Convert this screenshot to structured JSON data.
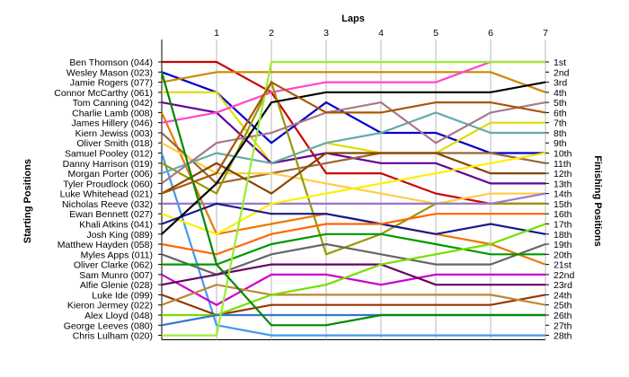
{
  "chart_data": {
    "type": "line",
    "title": "",
    "x_axis_title": "Laps",
    "left_axis_title": "Starting Positions",
    "right_axis_title": "Finishing Positions",
    "laps": [
      1,
      2,
      3,
      4,
      5,
      6,
      7
    ],
    "xlim": [
      0,
      7
    ],
    "ylim": [
      1,
      28
    ],
    "y_reversed": true,
    "grid": "vertical",
    "finishing_labels": [
      "1st",
      "2nd",
      "3rd",
      "4th",
      "5th",
      "6th",
      "7th",
      "8th",
      "9th",
      "10th",
      "11th",
      "12th",
      "13th",
      "14th",
      "15th",
      "16th",
      "17th",
      "18th",
      "19th",
      "20th",
      "21st",
      "22nd",
      "23rd",
      "24th",
      "25th",
      "26th",
      "27th",
      "28th"
    ],
    "series": [
      {
        "name": "Ben Thomson (044)",
        "color": "#cc0000",
        "positions": [
          1,
          1,
          4,
          12,
          12,
          14,
          15,
          15
        ]
      },
      {
        "name": "Wesley Mason (023)",
        "color": "#0000cc",
        "positions": [
          2,
          4,
          9,
          5,
          8,
          8,
          10,
          10
        ]
      },
      {
        "name": "Jamie Rogers (077)",
        "color": "#cc8800",
        "positions": [
          3,
          2,
          2,
          2,
          2,
          2,
          2,
          4
        ]
      },
      {
        "name": "Connor McCarthy (061)",
        "color": "#dddd00",
        "positions": [
          4,
          4,
          11,
          9,
          10,
          10,
          7,
          7
        ]
      },
      {
        "name": "Tom Canning (042)",
        "color": "#660099",
        "positions": [
          5,
          6,
          11,
          10,
          11,
          11,
          13,
          13
        ]
      },
      {
        "name": "Charlie Lamb (008)",
        "color": "#ee7700",
        "positions": [
          6,
          18,
          17,
          16,
          17,
          18,
          19,
          21
        ]
      },
      {
        "name": "James Hillery (046)",
        "color": "#ff44cc",
        "positions": [
          7,
          6,
          4,
          3,
          3,
          3,
          1,
          1
        ]
      },
      {
        "name": "Kiern Jewiss (003)",
        "color": "#996633",
        "positions": [
          8,
          13,
          12,
          11,
          10,
          10,
          10,
          11
        ]
      },
      {
        "name": "Oliver Smith (018)",
        "color": "#ffcc44",
        "positions": [
          9,
          12,
          12,
          13,
          14,
          15,
          14,
          14
        ]
      },
      {
        "name": "Samuel Pooley (012)",
        "color": "#4499ee",
        "positions": [
          10,
          27,
          28,
          28,
          28,
          28,
          28,
          28
        ]
      },
      {
        "name": "Danny Harrison (019)",
        "color": "#999900",
        "positions": [
          11,
          14,
          3,
          20,
          18,
          15,
          15,
          15
        ]
      },
      {
        "name": "Morgan Porter (006)",
        "color": "#66aaaa",
        "positions": [
          12,
          10,
          11,
          9,
          8,
          6,
          8,
          8
        ]
      },
      {
        "name": "Tyler Proudlock (060)",
        "color": "#aa7788",
        "positions": [
          13,
          9,
          8,
          6,
          5,
          9,
          6,
          5
        ]
      },
      {
        "name": "Luke Whitehead (021)",
        "color": "#884400",
        "positions": [
          14,
          11,
          14,
          10,
          10,
          10,
          12,
          12
        ]
      },
      {
        "name": "Nicholas Reeve (032)",
        "color": "#9977cc",
        "positions": [
          15,
          15,
          15,
          15,
          15,
          15,
          15,
          14
        ]
      },
      {
        "name": "Ewan Bennett (027)",
        "color": "#ffee00",
        "positions": [
          16,
          18,
          15,
          14,
          13,
          12,
          11,
          10
        ]
      },
      {
        "name": "Khali Atkins (041)",
        "color": "#1a1a8a",
        "positions": [
          17,
          15,
          16,
          16,
          17,
          18,
          17,
          18
        ]
      },
      {
        "name": "Josh King (089)",
        "color": "#000000",
        "positions": [
          18,
          13,
          5,
          4,
          4,
          4,
          4,
          3
        ]
      },
      {
        "name": "Matthew Hayden (058)",
        "color": "#ff6600",
        "positions": [
          19,
          20,
          18,
          17,
          17,
          16,
          16,
          16
        ]
      },
      {
        "name": "Myles Apps (011)",
        "color": "#666666",
        "positions": [
          20,
          22,
          20,
          19,
          20,
          21,
          21,
          19
        ]
      },
      {
        "name": "Oliver Clarke (062)",
        "color": "#009900",
        "positions": [
          21,
          21,
          19,
          18,
          18,
          19,
          20,
          20
        ]
      },
      {
        "name": "Sam Munro (007)",
        "color": "#cc00cc",
        "positions": [
          22,
          25,
          22,
          22,
          23,
          22,
          22,
          22
        ]
      },
      {
        "name": "Alfie Glenie (028)",
        "color": "#660066",
        "positions": [
          23,
          22,
          21,
          21,
          21,
          23,
          23,
          23
        ]
      },
      {
        "name": "Luke Ide (099)",
        "color": "#993300",
        "positions": [
          24,
          26,
          25,
          25,
          25,
          25,
          25,
          24
        ]
      },
      {
        "name": "Kieron Jermey (022)",
        "color": "#bb8833",
        "positions": [
          25,
          23,
          24,
          24,
          24,
          24,
          24,
          25
        ]
      },
      {
        "name": "Alex Lloyd (048)",
        "color": "#77dd00",
        "positions": [
          26,
          26,
          24,
          23,
          21,
          20,
          19,
          17
        ]
      },
      {
        "name": "George Leeves (080)",
        "color": "#3377cc",
        "positions": [
          27,
          26,
          26,
          26,
          26,
          26,
          26,
          26
        ]
      },
      {
        "name": "Chris Lulham (020)",
        "color": "#99ee33",
        "positions": [
          28,
          28,
          1,
          1,
          1,
          1,
          1,
          1
        ]
      },
      {
        "name": "",
        "color": "#008800",
        "positions": [
          2,
          21,
          27,
          27,
          26,
          26,
          26,
          26
        ]
      },
      {
        "name": "",
        "color": "#aa5500",
        "positions": [
          14,
          12,
          3,
          6,
          6,
          5,
          5,
          6
        ]
      }
    ]
  }
}
